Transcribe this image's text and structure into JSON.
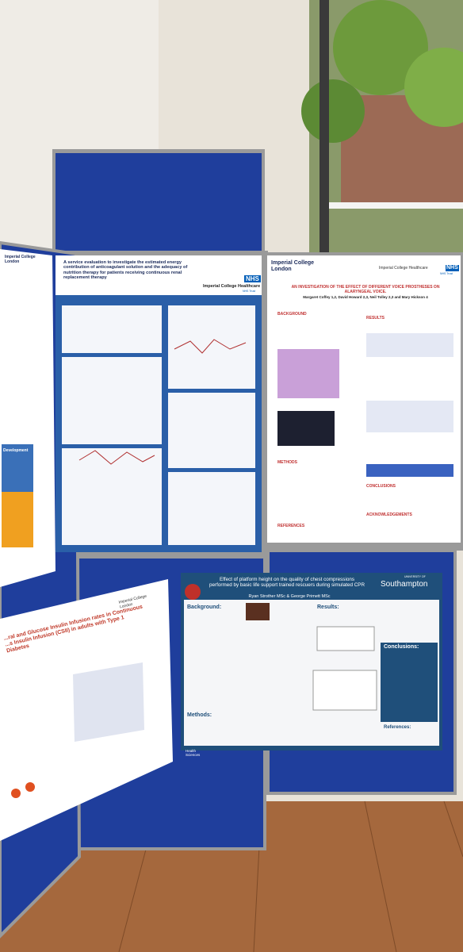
{
  "posters": [
    {
      "header": {
        "title": "A service evaluation to investigate the estimated energy contribution of anticoagulant solution and the adequacy of nutrition therapy for patients receiving continuous renal replacement therapy",
        "logo": "NHS",
        "organisation": "Imperial College Healthcare",
        "trust": "NHS Trust"
      }
    },
    {
      "header": {
        "logo_left": "Imperial College London",
        "organisation": "Imperial College Healthcare",
        "logo": "NHS",
        "trust": "NHS Trust",
        "title": "AN INVESTIGATION OF THE EFFECT OF DIFFERENT VOICE PROSTHESES ON ALARYNGEAL VOICE.",
        "authors": "Margaret Coffey 1,2, David Howard 2,3, Neil Tolley 2,3 and Mary Hickson 4"
      },
      "sections": [
        "BACKGROUND",
        "METHODS",
        "RESULTS",
        "CONCLUSIONS",
        "ACKNOWLEDGEMENTS",
        "REFERENCES"
      ]
    },
    {
      "header": {
        "title": "Effect of platform height on the quality of chest compressions performed by basic life support trained rescuers during simulated CPR",
        "authors": "Ryan Strother MSc & George Primett MSc",
        "university_prefix": "UNIVERSITY OF",
        "university": "Southampton"
      },
      "sections": [
        "Background:",
        "Methods:",
        "Results:",
        "Conclusions:",
        "References:"
      ],
      "footer": "Health Sciences"
    },
    {
      "header": {
        "logo": "Imperial College London",
        "title": "...ral and Glucose Insulin Infusion rates in Continuous ...s Insulin Infusion (CSII) in adults with Type 1 Diabetes"
      }
    },
    {
      "header": {
        "logo": "Imperial College London"
      },
      "sections": [
        "Development"
      ]
    }
  ]
}
